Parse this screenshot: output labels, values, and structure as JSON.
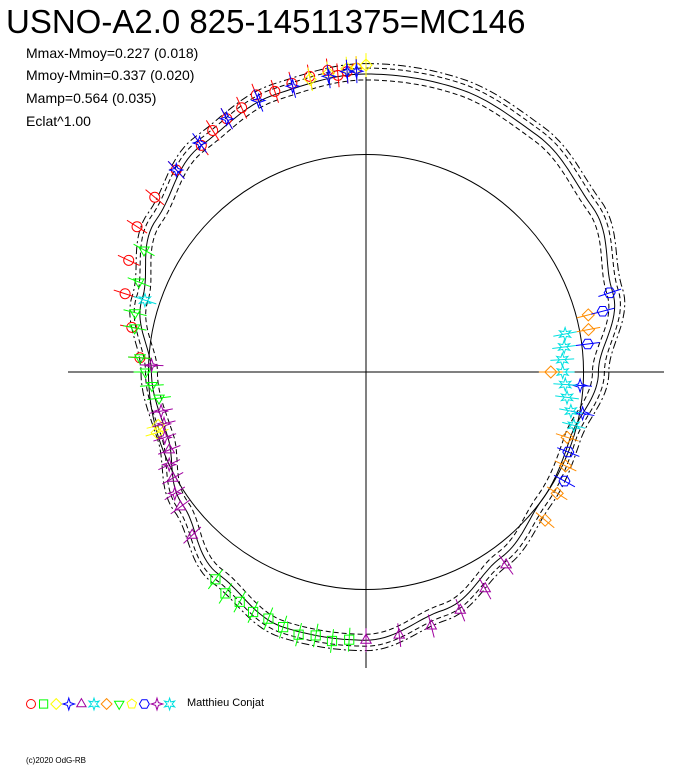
{
  "title": "USNO-A2.0 825-14511375=MC146",
  "stats": {
    "mmax_mmoy": "Mmax-Mmoy=0.227 (0.018)",
    "mmoy_mmin": "Mmoy-Mmin=0.337 (0.020)",
    "mamp": "Mamp=0.564 (0.035)",
    "eclat": "Eclat^1.00"
  },
  "legend": {
    "author": "Matthieu Conjat",
    "symbols": [
      {
        "shape": "circle",
        "color": "#ff0000"
      },
      {
        "shape": "square",
        "color": "#00ff00"
      },
      {
        "shape": "diamond",
        "color": "#ffff00"
      },
      {
        "shape": "star4",
        "color": "#0000ff"
      },
      {
        "shape": "triangle",
        "color": "#a000a0"
      },
      {
        "shape": "star6",
        "color": "#00e0e0"
      },
      {
        "shape": "diamond",
        "color": "#ff8c00"
      },
      {
        "shape": "triangle-down",
        "color": "#00ff00"
      },
      {
        "shape": "pentagon",
        "color": "#ffff00"
      },
      {
        "shape": "hexagon",
        "color": "#0000ff"
      },
      {
        "shape": "star4",
        "color": "#a000a0"
      },
      {
        "shape": "star6",
        "color": "#00e0e0"
      }
    ]
  },
  "copyright": "(c)2020 OdG-RB",
  "chart_data": {
    "type": "scatter",
    "subtype": "polar light curve",
    "reference_circle_radius": 0.73,
    "axes": true,
    "fit_curve": {
      "phase": [
        0.0,
        0.05,
        0.1,
        0.15,
        0.2,
        0.25,
        0.3,
        0.35,
        0.4,
        0.45,
        0.5,
        0.55,
        0.6,
        0.65,
        0.7,
        0.75,
        0.8,
        0.85,
        0.9,
        0.95,
        1.0
      ],
      "radius": [
        1.0,
        1.0,
        0.98,
        0.94,
        0.87,
        0.78,
        0.72,
        0.73,
        0.77,
        0.84,
        0.9,
        0.9,
        0.84,
        0.76,
        0.7,
        0.72,
        0.79,
        0.87,
        0.94,
        0.98,
        1.0
      ]
    },
    "series": [
      {
        "color": "#ff0000",
        "shape": "circle",
        "phase": [
          0.9,
          0.91,
          0.92,
          0.93,
          0.94,
          0.95,
          0.96,
          0.97,
          0.98,
          0.99,
          0.82,
          0.84,
          0.86,
          0.88,
          0.8,
          0.78,
          0.76,
          0.995,
          0.985
        ],
        "radius": [
          0.94,
          0.96,
          0.97,
          0.98,
          1.0,
          0.99,
          1.0,
          1.01,
          1.02,
          1.01,
          0.88,
          0.91,
          0.92,
          0.93,
          0.85,
          0.8,
          0.76,
          1.02,
          1.0
        ]
      },
      {
        "color": "#00ff00",
        "shape": "square",
        "phase": [
          0.51,
          0.52,
          0.53,
          0.54,
          0.55,
          0.56,
          0.57,
          0.58,
          0.59,
          0.6
        ],
        "radius": [
          0.9,
          0.91,
          0.9,
          0.91,
          0.9,
          0.89,
          0.89,
          0.88,
          0.88,
          0.86
        ]
      },
      {
        "color": "#ffff00",
        "shape": "diamond",
        "phase": [
          0.97,
          0.98,
          0.99,
          0.995,
          1.0,
          0.705,
          0.71
        ],
        "radius": [
          1.0,
          1.01,
          1.02,
          1.02,
          1.03,
          0.73,
          0.72
        ]
      },
      {
        "color": "#0000ff",
        "shape": "star4",
        "phase": [
          0.88,
          0.9,
          0.92,
          0.94,
          0.96,
          0.98,
          0.99,
          0.995,
          0.26,
          0.28
        ],
        "radius": [
          0.93,
          0.95,
          0.97,
          0.98,
          0.99,
          1.0,
          1.01,
          1.01,
          0.72,
          0.74
        ]
      },
      {
        "color": "#a000a0",
        "shape": "triangle",
        "phase": [
          0.4,
          0.42,
          0.44,
          0.46,
          0.48,
          0.5,
          0.63,
          0.65,
          0.67,
          0.69
        ],
        "radius": [
          0.8,
          0.83,
          0.86,
          0.88,
          0.89,
          0.9,
          0.8,
          0.77,
          0.74,
          0.71
        ]
      },
      {
        "color": "#00e0e0",
        "shape": "star6",
        "phase": [
          0.22,
          0.23,
          0.24,
          0.25,
          0.26,
          0.27,
          0.28,
          0.29,
          0.8
        ],
        "radius": [
          0.68,
          0.67,
          0.66,
          0.66,
          0.67,
          0.68,
          0.7,
          0.72,
          0.78
        ]
      },
      {
        "color": "#ff8c00",
        "shape": "diamond",
        "phase": [
          0.21,
          0.22,
          0.25,
          0.3,
          0.32,
          0.34,
          0.36
        ],
        "radius": [
          0.77,
          0.76,
          0.62,
          0.71,
          0.74,
          0.76,
          0.78
        ]
      },
      {
        "color": "#00ff00",
        "shape": "triangle-down",
        "phase": [
          0.73,
          0.74,
          0.75,
          0.76,
          0.78,
          0.79,
          0.81,
          0.83
        ],
        "radius": [
          0.7,
          0.72,
          0.74,
          0.76,
          0.79,
          0.8,
          0.82,
          0.85
        ]
      },
      {
        "color": "#0000ff",
        "shape": "hexagon",
        "phase": [
          0.2,
          0.21,
          0.23,
          0.31,
          0.33
        ],
        "radius": [
          0.86,
          0.82,
          0.75,
          0.73,
          0.76
        ]
      },
      {
        "color": "#a000a0",
        "shape": "star4",
        "phase": [
          0.66,
          0.68,
          0.7,
          0.71,
          0.72,
          0.755
        ],
        "radius": [
          0.76,
          0.73,
          0.71,
          0.7,
          0.7,
          0.72
        ]
      }
    ]
  }
}
